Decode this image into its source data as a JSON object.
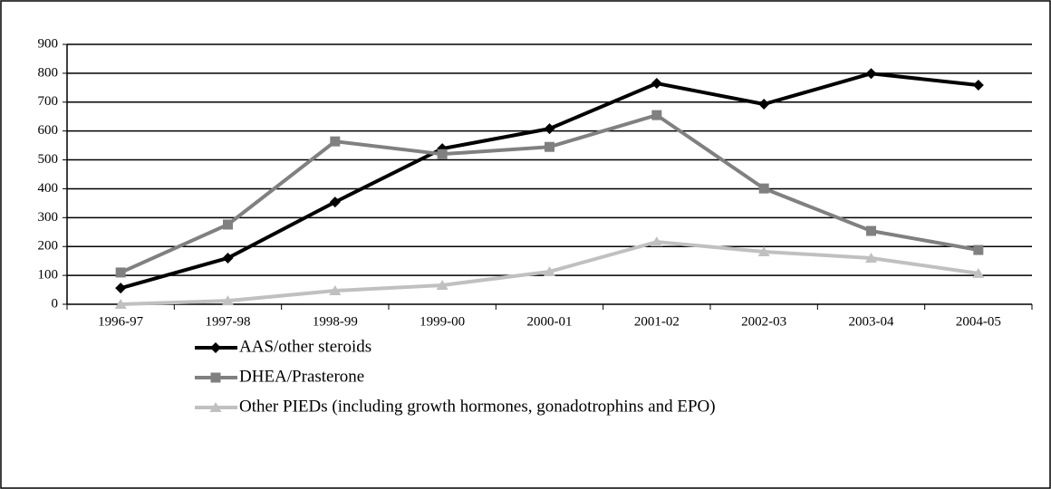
{
  "chart_data": {
    "type": "line",
    "categories": [
      "1996-97",
      "1997-98",
      "1998-99",
      "1999-00",
      "2000-01",
      "2001-02",
      "2002-03",
      "2003-04",
      "2004-05"
    ],
    "series": [
      {
        "name": "AAS/other steroids",
        "color": "#000000",
        "marker": "diamond",
        "values": [
          56,
          160,
          354,
          539,
          608,
          765,
          693,
          799,
          759
        ]
      },
      {
        "name": "DHEA/Prasterone",
        "color": "#808080",
        "marker": "square",
        "values": [
          110,
          276,
          564,
          520,
          545,
          655,
          401,
          254,
          188
        ]
      },
      {
        "name": "Other PIEDs (including growth hormones, gonadotrophins and EPO)",
        "color": "#c0c0c0",
        "marker": "triangle",
        "values": [
          0,
          12,
          47,
          66,
          113,
          216,
          182,
          160,
          107
        ]
      }
    ],
    "ylim": [
      0,
      900
    ],
    "yticks": [
      0,
      100,
      200,
      300,
      400,
      500,
      600,
      700,
      800,
      900
    ],
    "grid": true,
    "legend": "bottom"
  }
}
